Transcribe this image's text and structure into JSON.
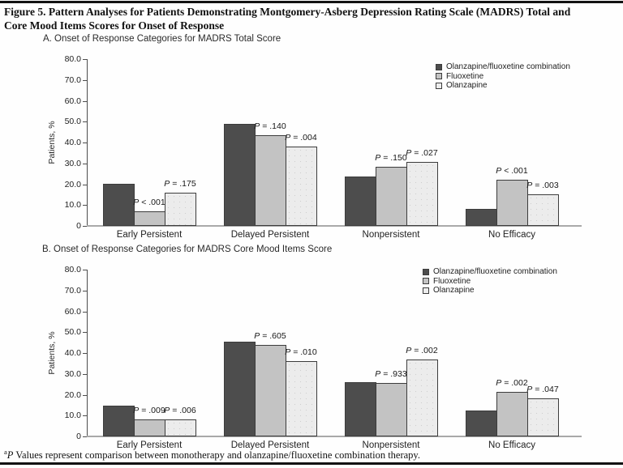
{
  "figure": {
    "title_lines": [
      "Figure 5. Pattern Analyses for Patients Demonstrating Montgomery-Asberg Depression Rating Scale (MADRS) Total and",
      "Core Mood Items Scores for Onset of Response"
    ],
    "footnote": {
      "sup": "a",
      "p": "P",
      "text": " Values represent comparison between monotherapy and olanzapine/fluoxetine combination therapy."
    }
  },
  "colors": {
    "series": [
      "#4d4d4d",
      "#c3c3c3",
      "#ececec"
    ],
    "bar_border": "#3c3c3c",
    "axis": "#4d4d4d",
    "baseline": "#a9a9a9"
  },
  "chart_data": [
    {
      "type": "bar",
      "panel_label": "A. Onset of Response Categories for MADRS Total Score",
      "ylabel": "Patients, %",
      "ylim": [
        0,
        80
      ],
      "ytick_labels": [
        "80.0",
        "70.0",
        "60.0",
        "50.0",
        "40.0",
        "30.0",
        "20.0",
        "10.0",
        "0"
      ],
      "grid": false,
      "legend_position": "top-right",
      "categories": [
        "Early Persistent",
        "Delayed Persistent",
        "Nonpersistent",
        "No Efficacy"
      ],
      "series": [
        {
          "name": "Olanzapine/fluoxetine combination",
          "values": [
            20.3,
            49.0,
            23.5,
            8.0
          ],
          "p_labels": [
            null,
            null,
            null,
            null
          ]
        },
        {
          "name": "Fluoxetine",
          "values": [
            6.9,
            43.5,
            28.3,
            22.1
          ],
          "p_labels": [
            "P < .001",
            "P = .140",
            "P = .150",
            "P < .001"
          ]
        },
        {
          "name": "Olanzapine",
          "values": [
            16.0,
            38.2,
            30.8,
            15.3
          ],
          "p_labels": [
            "P = .175",
            "P = .004",
            "P = .027",
            "P = .003"
          ]
        }
      ]
    },
    {
      "type": "bar",
      "panel_label": "B. Onset of Response Categories for MADRS Core Mood Items Score",
      "ylabel": "Patients, %",
      "ylim": [
        0,
        80
      ],
      "ytick_labels": [
        "80.0",
        "70.0",
        "60.0",
        "50.0",
        "40.0",
        "30.0",
        "20.0",
        "10.0",
        "0"
      ],
      "grid": false,
      "legend_position": "top-right",
      "categories": [
        "Early Persistent",
        "Delayed Persistent",
        "Nonpersistent",
        "No Efficacy"
      ],
      "series": [
        {
          "name": "Olanzapine/fluoxetine combination",
          "values": [
            14.8,
            45.5,
            26.2,
            12.6
          ],
          "p_labels": [
            null,
            null,
            null,
            null
          ]
        },
        {
          "name": "Fluoxetine",
          "values": [
            8.2,
            43.7,
            25.6,
            21.2
          ],
          "p_labels": [
            "P = .009",
            "P = .605",
            "P = .933",
            "P = .002"
          ]
        },
        {
          "name": "Olanzapine",
          "values": [
            8.0,
            36.0,
            37.0,
            18.1
          ],
          "p_labels": [
            "P = .006",
            "P = .010",
            "P = .002",
            "P = .047"
          ]
        }
      ]
    }
  ]
}
